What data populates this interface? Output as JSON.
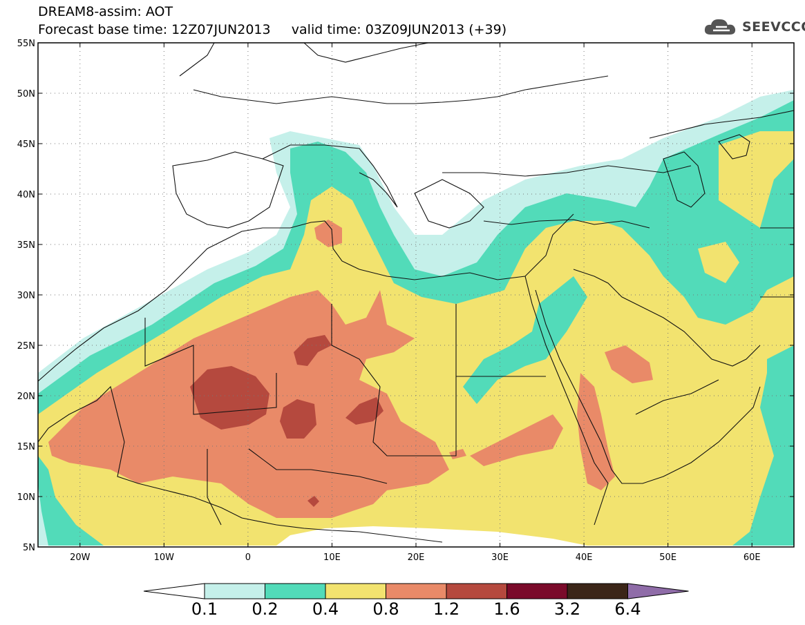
{
  "header": {
    "title": "DREAM8-assim: AOT",
    "base_time": "Forecast base time: 12Z07JUN2013",
    "valid_time": "valid time: 03Z09JUN2013 (+39)"
  },
  "logo": {
    "icon": "cloud-icon",
    "text": "SEEVCCC"
  },
  "axes": {
    "lat_labels": [
      "55N",
      "50N",
      "45N",
      "40N",
      "35N",
      "30N",
      "25N",
      "20N",
      "15N",
      "10N",
      "5N"
    ],
    "lon_labels": [
      "20W",
      "10W",
      "0",
      "10E",
      "20E",
      "30E",
      "40E",
      "50E",
      "60E"
    ],
    "lon_range": [
      -25,
      65
    ],
    "lat_range": [
      5,
      55
    ]
  },
  "colorbar": {
    "levels": [
      "0.1",
      "0.2",
      "0.4",
      "0.8",
      "1.2",
      "1.6",
      "3.2",
      "6.4"
    ],
    "colors": [
      "#ffffff",
      "#c5f0ea",
      "#52dbb9",
      "#f2e36f",
      "#e98a68",
      "#b5493e",
      "#7a0a2a",
      "#3b2518",
      "#8f6ca8"
    ]
  }
}
